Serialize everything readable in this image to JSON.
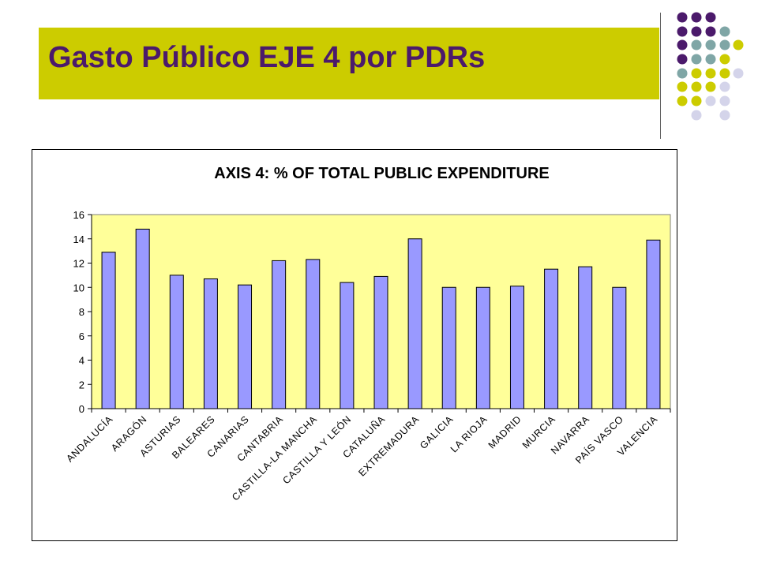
{
  "slide": {
    "title": "Gasto Público EJE 4 por PDRs"
  },
  "colors": {
    "title_band": "#cccc00",
    "title_text": "#4b1a6b",
    "plot_area": "#ffff99",
    "bar_fill": "#9999ff",
    "bar_stroke": "#000000",
    "dot_purple": "#4b1a6b",
    "dot_teal": "#7fa6a6",
    "dot_olive": "#cccc00",
    "dot_lavender": "#d4d4ea"
  },
  "chart_data": {
    "type": "bar",
    "title": "AXIS 4: % OF TOTAL PUBLIC EXPENDITURE",
    "xlabel": "",
    "ylabel": "",
    "ylim": [
      0,
      16
    ],
    "yticks": [
      0,
      2,
      4,
      6,
      8,
      10,
      12,
      14,
      16
    ],
    "grid": false,
    "legend": "none",
    "categories": [
      "ANDALUCÍA",
      "ARAGÓN",
      "ASTURIAS",
      "BALEARES",
      "CANARIAS",
      "CANTABRIA",
      "CASTILLA-LA MANCHA",
      "CASTILLA Y LEÓN",
      "CATALUÑA",
      "EXTREMADURA",
      "GALICIA",
      "LA RIOJA",
      "MADRID",
      "MURCIA",
      "NAVARRA",
      "PAÍS VASCO",
      "VALENCIA"
    ],
    "values": [
      12.9,
      14.8,
      11.0,
      10.7,
      10.2,
      12.2,
      12.3,
      10.4,
      10.9,
      14.0,
      10.0,
      10.0,
      10.1,
      11.5,
      11.7,
      10.0,
      13.9
    ]
  }
}
